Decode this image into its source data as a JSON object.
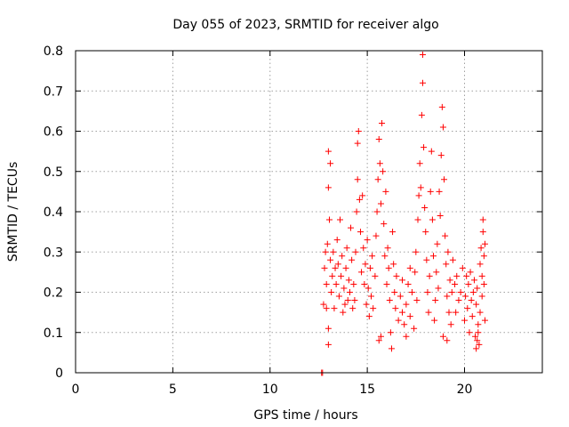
{
  "chart_data": {
    "type": "scatter",
    "title": "Day 055 of 2023, SRMTID for receiver algo",
    "xlabel": "GPS time / hours",
    "ylabel": "SRMTID / TECUs",
    "xlim": [
      0,
      24
    ],
    "ylim": [
      0,
      0.8
    ],
    "xticks": [
      0,
      5,
      10,
      15,
      20
    ],
    "xtick_labels": [
      "0",
      "5",
      "10",
      "15",
      "20"
    ],
    "yticks": [
      0,
      0.1,
      0.2,
      0.3,
      0.4,
      0.5,
      0.6,
      0.7,
      0.8
    ],
    "ytick_labels": [
      "0",
      "0.1",
      "0.2",
      "0.3",
      "0.4",
      "0.5",
      "0.6",
      "0.7",
      "0.8"
    ],
    "grid": true,
    "marker": "+",
    "series_color": "#ff0000",
    "series": [
      {
        "name": "SRMTID",
        "points": [
          [
            12.65,
            0.0
          ],
          [
            12.7,
            0.0
          ],
          [
            12.75,
            0.17
          ],
          [
            12.8,
            0.26
          ],
          [
            12.85,
            0.3
          ],
          [
            12.9,
            0.22
          ],
          [
            12.95,
            0.32
          ],
          [
            13.0,
            0.55
          ],
          [
            13.0,
            0.46
          ],
          [
            13.05,
            0.38
          ],
          [
            13.1,
            0.28
          ],
          [
            13.1,
            0.52
          ],
          [
            13.15,
            0.2
          ],
          [
            13.2,
            0.24
          ],
          [
            13.25,
            0.3
          ],
          [
            13.3,
            0.16
          ],
          [
            13.35,
            0.26
          ],
          [
            13.0,
            0.07
          ],
          [
            13.0,
            0.11
          ],
          [
            12.9,
            0.16
          ],
          [
            13.4,
            0.22
          ],
          [
            13.45,
            0.33
          ],
          [
            13.5,
            0.27
          ],
          [
            13.55,
            0.19
          ],
          [
            13.6,
            0.38
          ],
          [
            13.65,
            0.24
          ],
          [
            13.7,
            0.29
          ],
          [
            13.75,
            0.15
          ],
          [
            13.8,
            0.21
          ],
          [
            13.85,
            0.17
          ],
          [
            13.9,
            0.26
          ],
          [
            13.95,
            0.31
          ],
          [
            14.0,
            0.18
          ],
          [
            14.05,
            0.23
          ],
          [
            14.1,
            0.2
          ],
          [
            14.15,
            0.36
          ],
          [
            14.2,
            0.28
          ],
          [
            14.25,
            0.16
          ],
          [
            14.3,
            0.22
          ],
          [
            14.35,
            0.18
          ],
          [
            14.4,
            0.3
          ],
          [
            14.45,
            0.4
          ],
          [
            14.5,
            0.48
          ],
          [
            14.5,
            0.57
          ],
          [
            14.55,
            0.6
          ],
          [
            14.6,
            0.43
          ],
          [
            14.65,
            0.35
          ],
          [
            14.7,
            0.25
          ],
          [
            14.75,
            0.44
          ],
          [
            14.8,
            0.31
          ],
          [
            14.85,
            0.22
          ],
          [
            14.9,
            0.27
          ],
          [
            14.95,
            0.17
          ],
          [
            15.0,
            0.33
          ],
          [
            15.05,
            0.21
          ],
          [
            15.1,
            0.14
          ],
          [
            15.15,
            0.26
          ],
          [
            15.2,
            0.19
          ],
          [
            15.25,
            0.29
          ],
          [
            15.3,
            0.16
          ],
          [
            15.4,
            0.24
          ],
          [
            15.45,
            0.34
          ],
          [
            15.5,
            0.4
          ],
          [
            15.55,
            0.48
          ],
          [
            15.6,
            0.58
          ],
          [
            15.65,
            0.52
          ],
          [
            15.7,
            0.42
          ],
          [
            15.75,
            0.62
          ],
          [
            15.8,
            0.5
          ],
          [
            15.85,
            0.37
          ],
          [
            15.9,
            0.29
          ],
          [
            15.95,
            0.45
          ],
          [
            16.0,
            0.22
          ],
          [
            16.05,
            0.31
          ],
          [
            16.1,
            0.26
          ],
          [
            16.15,
            0.18
          ],
          [
            16.2,
            0.1
          ],
          [
            16.25,
            0.06
          ],
          [
            15.6,
            0.08
          ],
          [
            15.7,
            0.09
          ],
          [
            16.3,
            0.35
          ],
          [
            16.35,
            0.27
          ],
          [
            16.4,
            0.2
          ],
          [
            16.45,
            0.16
          ],
          [
            16.5,
            0.24
          ],
          [
            16.6,
            0.13
          ],
          [
            16.7,
            0.19
          ],
          [
            16.8,
            0.15
          ],
          [
            16.9,
            0.12
          ],
          [
            17.0,
            0.17
          ],
          [
            17.1,
            0.22
          ],
          [
            17.2,
            0.14
          ],
          [
            17.3,
            0.2
          ],
          [
            17.4,
            0.11
          ],
          [
            17.45,
            0.25
          ],
          [
            17.5,
            0.3
          ],
          [
            17.55,
            0.18
          ],
          [
            16.8,
            0.23
          ],
          [
            17.0,
            0.09
          ],
          [
            17.2,
            0.26
          ],
          [
            17.6,
            0.38
          ],
          [
            17.65,
            0.44
          ],
          [
            17.7,
            0.52
          ],
          [
            17.75,
            0.46
          ],
          [
            17.8,
            0.64
          ],
          [
            17.85,
            0.72
          ],
          [
            17.85,
            0.79
          ],
          [
            17.9,
            0.56
          ],
          [
            17.95,
            0.41
          ],
          [
            18.0,
            0.35
          ],
          [
            18.05,
            0.28
          ],
          [
            18.1,
            0.2
          ],
          [
            18.15,
            0.15
          ],
          [
            18.2,
            0.24
          ],
          [
            18.25,
            0.45
          ],
          [
            18.3,
            0.55
          ],
          [
            18.35,
            0.38
          ],
          [
            18.4,
            0.29
          ],
          [
            18.45,
            0.13
          ],
          [
            18.5,
            0.18
          ],
          [
            18.55,
            0.25
          ],
          [
            18.6,
            0.32
          ],
          [
            18.65,
            0.21
          ],
          [
            18.7,
            0.45
          ],
          [
            18.75,
            0.39
          ],
          [
            18.8,
            0.54
          ],
          [
            18.85,
            0.66
          ],
          [
            18.9,
            0.61
          ],
          [
            18.95,
            0.48
          ],
          [
            19.0,
            0.34
          ],
          [
            19.05,
            0.27
          ],
          [
            19.1,
            0.19
          ],
          [
            19.15,
            0.3
          ],
          [
            19.2,
            0.15
          ],
          [
            19.25,
            0.23
          ],
          [
            19.3,
            0.12
          ],
          [
            19.35,
            0.2
          ],
          [
            18.9,
            0.09
          ],
          [
            19.1,
            0.08
          ],
          [
            19.4,
            0.28
          ],
          [
            19.5,
            0.22
          ],
          [
            19.55,
            0.15
          ],
          [
            19.6,
            0.24
          ],
          [
            19.7,
            0.18
          ],
          [
            19.8,
            0.2
          ],
          [
            19.9,
            0.26
          ],
          [
            20.0,
            0.13
          ],
          [
            20.05,
            0.19
          ],
          [
            20.1,
            0.24
          ],
          [
            20.15,
            0.16
          ],
          [
            20.2,
            0.22
          ],
          [
            20.25,
            0.1
          ],
          [
            20.3,
            0.25
          ],
          [
            20.35,
            0.18
          ],
          [
            20.4,
            0.14
          ],
          [
            20.45,
            0.2
          ],
          [
            20.5,
            0.23
          ],
          [
            20.55,
            0.09
          ],
          [
            20.6,
            0.17
          ],
          [
            20.65,
            0.21
          ],
          [
            20.6,
            0.06
          ],
          [
            20.65,
            0.08
          ],
          [
            20.7,
            0.12
          ],
          [
            20.75,
            0.07
          ],
          [
            20.8,
            0.27
          ],
          [
            20.85,
            0.31
          ],
          [
            20.9,
            0.24
          ],
          [
            20.95,
            0.35
          ],
          [
            20.95,
            0.38
          ],
          [
            21.0,
            0.29
          ],
          [
            21.0,
            0.22
          ],
          [
            21.05,
            0.32
          ],
          [
            21.05,
            0.13
          ],
          [
            20.9,
            0.19
          ],
          [
            20.8,
            0.15
          ],
          [
            20.7,
            0.1
          ]
        ]
      }
    ]
  }
}
